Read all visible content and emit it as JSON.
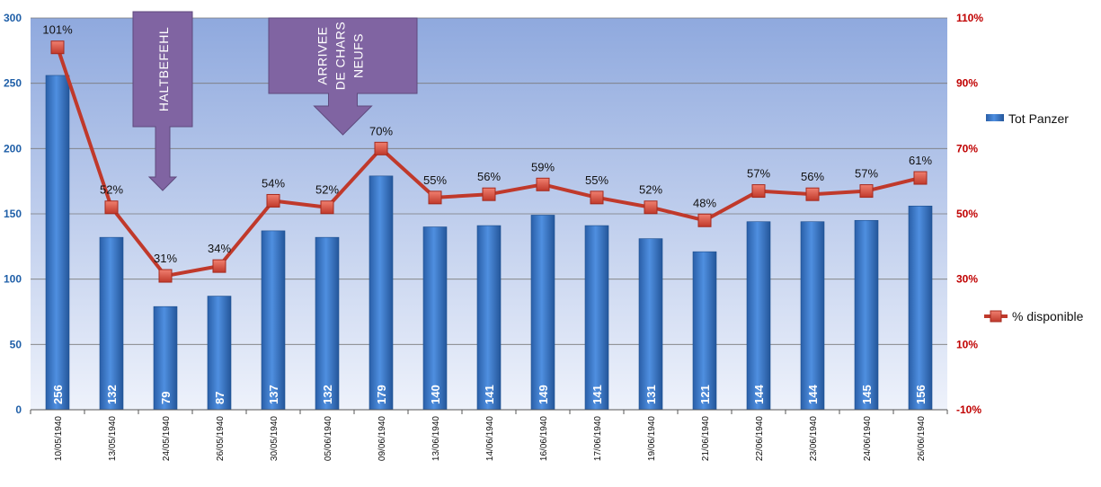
{
  "chart_data": {
    "type": "bar+line",
    "categories": [
      "10/05/1940",
      "13/05/1940",
      "24/05/1940",
      "26/05/1940",
      "30/05/1940",
      "05/06/1940",
      "09/06/1940",
      "13/06/1940",
      "14/06/1940",
      "16/06/1940",
      "17/06/1940",
      "19/06/1940",
      "21/06/1940",
      "22/06/1940",
      "23/06/1940",
      "24/06/1940",
      "26/06/1940"
    ],
    "series": [
      {
        "name": "Tot Panzer",
        "type": "bar",
        "axis": "left",
        "values": [
          256,
          132,
          79,
          87,
          137,
          132,
          179,
          140,
          141,
          149,
          141,
          131,
          121,
          144,
          144,
          145,
          156
        ],
        "labels": [
          "256",
          "132",
          "79",
          "87",
          "137",
          "132",
          "179",
          "140",
          "141",
          "149",
          "141",
          "131",
          "121",
          "144",
          "144",
          "145",
          "156"
        ]
      },
      {
        "name": "% disponible",
        "type": "line",
        "axis": "right",
        "values": [
          101,
          52,
          31,
          34,
          54,
          52,
          70,
          55,
          56,
          59,
          55,
          52,
          48,
          57,
          56,
          57,
          61
        ],
        "labels": [
          "101%",
          "52%",
          "31%",
          "34%",
          "54%",
          "52%",
          "70%",
          "55%",
          "56%",
          "59%",
          "55%",
          "52%",
          "48%",
          "57%",
          "56%",
          "57%",
          "61%"
        ]
      }
    ],
    "y_left": {
      "min": 0,
      "max": 300,
      "ticks": [
        "0",
        "50",
        "100",
        "150",
        "200",
        "250",
        "300"
      ]
    },
    "y_right": {
      "min": -10,
      "max": 110,
      "ticks": [
        "-10%",
        "10%",
        "30%",
        "50%",
        "70%",
        "90%",
        "110%"
      ]
    },
    "grid": true,
    "legend_position": "right",
    "annotations": [
      {
        "text": [
          "HALTBEFEHL"
        ],
        "after_category": "24/05/1940"
      },
      {
        "text": [
          "ARRIVEE",
          "DE CHARS",
          "NEUFS"
        ],
        "after_category": "05/06/1940"
      }
    ]
  },
  "colors": {
    "bar": "#2f6fc0",
    "line": "#c0392b",
    "marker": "#d9443a",
    "callout": "#8064a2",
    "left_axis": "#1f5fa8",
    "right_axis": "#c00000"
  }
}
